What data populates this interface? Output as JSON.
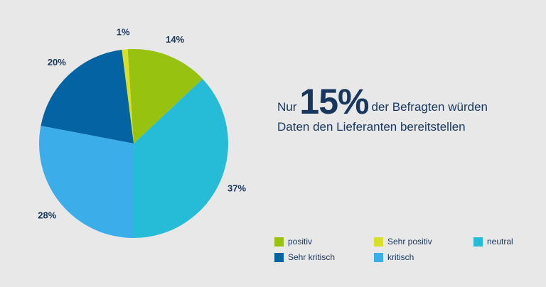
{
  "headline": {
    "prefix": "Nur",
    "highlight": "15%",
    "suffix": "der Befragten würden",
    "line2": "Daten den Lieferanten bereitstellen"
  },
  "chart_data": {
    "type": "pie",
    "title": "",
    "slices": [
      {
        "name": "neutral",
        "value": 37,
        "label": "37%",
        "color": "#26bcd7"
      },
      {
        "name": "positiv",
        "value": 14,
        "label": "14%",
        "color": "#97c20f"
      },
      {
        "name": "Sehr positiv",
        "value": 1,
        "label": "1%",
        "color": "#d8df28"
      },
      {
        "name": "Sehr kritisch",
        "value": 20,
        "label": "20%",
        "color": "#0463a3"
      },
      {
        "name": "kritisch",
        "value": 28,
        "label": "28%",
        "color": "#3baee9"
      }
    ],
    "start_angle_deg": 90,
    "direction": "clockwise",
    "legend": {
      "placement": "bottom-right",
      "items": [
        {
          "label": "positiv",
          "color": "#97c20f"
        },
        {
          "label": "Sehr positiv",
          "color": "#d8df28"
        },
        {
          "label": "neutral",
          "color": "#26bcd7"
        },
        {
          "label": "Sehr kritisch",
          "color": "#0463a3"
        },
        {
          "label": "kritisch",
          "color": "#3baee9"
        }
      ]
    }
  }
}
